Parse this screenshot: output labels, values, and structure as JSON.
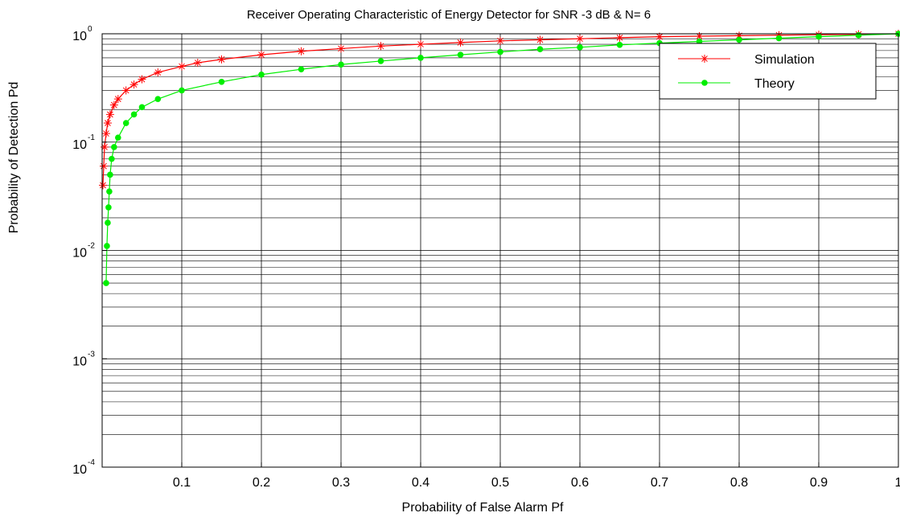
{
  "chart_data": {
    "type": "line",
    "title": "Receiver Operating Characteristic of Energy Detector for SNR -3 dB & N= 6",
    "xlabel": "Probability of False Alarm Pf",
    "ylabel": "Probability of Detection Pd",
    "xlim": [
      0,
      1
    ],
    "ylim": [
      0.0001,
      1
    ],
    "yscale": "log",
    "grid": true,
    "legend_position": "top-right",
    "x_ticks": [
      {
        "value": 0.1,
        "label": "0.1"
      },
      {
        "value": 0.2,
        "label": "0.2"
      },
      {
        "value": 0.3,
        "label": "0.3"
      },
      {
        "value": 0.4,
        "label": "0.4"
      },
      {
        "value": 0.5,
        "label": "0.5"
      },
      {
        "value": 0.6,
        "label": "0.6"
      },
      {
        "value": 0.7,
        "label": "0.7"
      },
      {
        "value": 0.8,
        "label": "0.8"
      },
      {
        "value": 0.9,
        "label": "0.9"
      },
      {
        "value": 1,
        "label": "1"
      }
    ],
    "y_ticks": [
      {
        "exp": 0,
        "base": "10",
        "sup": "0"
      },
      {
        "exp": -1,
        "base": "10",
        "sup": "-1"
      },
      {
        "exp": -2,
        "base": "10",
        "sup": "-2"
      },
      {
        "exp": -3,
        "base": "10",
        "sup": "-3"
      },
      {
        "exp": -4,
        "base": "10",
        "sup": "-4"
      }
    ],
    "series": [
      {
        "name": "Simulation",
        "color": "#ff0000",
        "marker": "star",
        "x": [
          0.001,
          0.002,
          0.003,
          0.005,
          0.007,
          0.01,
          0.015,
          0.02,
          0.03,
          0.04,
          0.05,
          0.07,
          0.1,
          0.12,
          0.15,
          0.2,
          0.25,
          0.3,
          0.35,
          0.4,
          0.45,
          0.5,
          0.55,
          0.6,
          0.65,
          0.7,
          0.75,
          0.8,
          0.85,
          0.9,
          0.95,
          1.0
        ],
        "y": [
          0.04,
          0.06,
          0.09,
          0.12,
          0.15,
          0.18,
          0.22,
          0.25,
          0.3,
          0.34,
          0.38,
          0.44,
          0.5,
          0.54,
          0.58,
          0.64,
          0.69,
          0.73,
          0.77,
          0.8,
          0.83,
          0.86,
          0.88,
          0.9,
          0.92,
          0.94,
          0.95,
          0.96,
          0.97,
          0.98,
          0.99,
          1.0
        ]
      },
      {
        "name": "Theory",
        "color": "#00ee00",
        "marker": "dot",
        "x": [
          0.005,
          0.006,
          0.007,
          0.008,
          0.009,
          0.01,
          0.012,
          0.015,
          0.02,
          0.03,
          0.04,
          0.05,
          0.07,
          0.1,
          0.15,
          0.2,
          0.25,
          0.3,
          0.35,
          0.4,
          0.45,
          0.5,
          0.55,
          0.6,
          0.65,
          0.7,
          0.75,
          0.8,
          0.85,
          0.9,
          0.95,
          1.0
        ],
        "y": [
          0.005,
          0.011,
          0.018,
          0.025,
          0.035,
          0.05,
          0.07,
          0.09,
          0.11,
          0.15,
          0.18,
          0.21,
          0.25,
          0.3,
          0.36,
          0.42,
          0.47,
          0.52,
          0.56,
          0.6,
          0.64,
          0.68,
          0.72,
          0.75,
          0.79,
          0.82,
          0.85,
          0.88,
          0.91,
          0.94,
          0.97,
          1.0
        ]
      }
    ]
  }
}
